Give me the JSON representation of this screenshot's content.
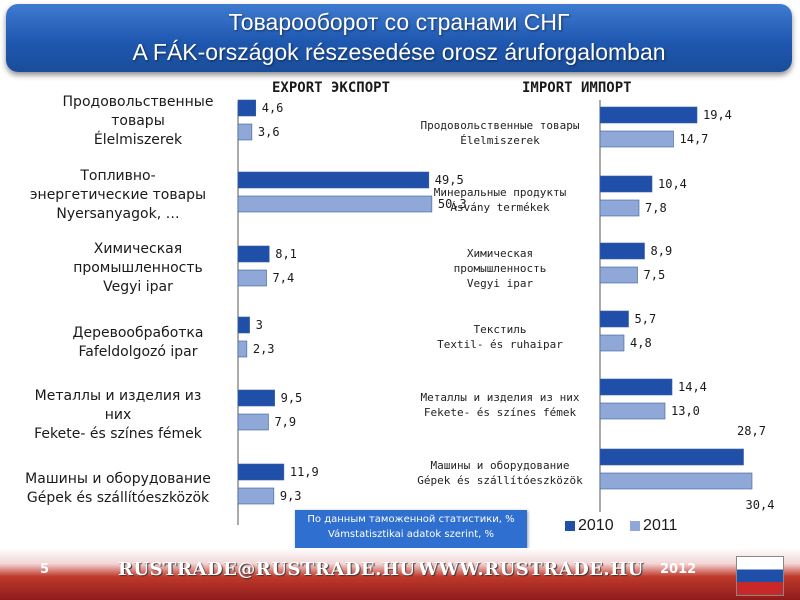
{
  "title": {
    "line1": "Товарооборот со странами СНГ",
    "line2": "A FÁK-országok részesedése orosz áruforgalomban"
  },
  "colors": {
    "y2010": "#1f4fa8",
    "y2011": "#8fa8d8",
    "axis": "#555555"
  },
  "chart_data": [
    {
      "type": "bar",
      "orientation": "horizontal",
      "title": "EXPORT ЭКСПОРТ",
      "categories": [
        "Продовольственные товары Élelmiszerek",
        "Топливно-энергетические товары Nyersanyagok, …",
        "Химическая промышленность Vegyi ipar",
        "Деревообработка Fafeldolgozó ipar",
        "Металлы и изделия из них Fekete- és színes fémek",
        "Машины и оборудование Gépek és szállítóeszközök"
      ],
      "series": [
        {
          "name": "2010",
          "values": [
            4.6,
            49.5,
            8.1,
            3,
            9.5,
            11.9
          ]
        },
        {
          "name": "2011",
          "values": [
            3.6,
            50.3,
            7.4,
            2.3,
            7.9,
            9.3
          ]
        }
      ],
      "value_labels": {
        "2010": [
          "4,6",
          "49,5",
          "8,1",
          "3",
          "9,5",
          "11,9"
        ],
        "2011": [
          "3,6",
          "50,3",
          "7,4",
          "2,3",
          "7,9",
          "9,3"
        ]
      },
      "xlim": [
        0,
        55
      ]
    },
    {
      "type": "bar",
      "orientation": "horizontal",
      "title": "IMPORT ИМПОРТ",
      "categories": [
        "Продовольственные товары Élelmiszerek",
        "Минеральные продукты Ásvány termékek",
        "Химическая промышленность Vegyi ipar",
        "Текстиль Textil- és ruhaipar",
        "Металлы и изделия из них Fekete- és színes fémek",
        "Машины и оборудование Gépek és szállítóeszközök"
      ],
      "series": [
        {
          "name": "2010",
          "values": [
            19.4,
            10.4,
            8.9,
            5.7,
            14.4,
            28.7
          ]
        },
        {
          "name": "2011",
          "values": [
            14.7,
            7.8,
            7.5,
            4.8,
            13.0,
            30.4
          ]
        }
      ],
      "value_labels": {
        "2010": [
          "19,4",
          "10,4",
          "8,9",
          "5,7",
          "14,4",
          "28,7"
        ],
        "2011": [
          "14,7",
          "7,8",
          "7,5",
          "4,8",
          "13,0",
          "30,4"
        ]
      },
      "xlim": [
        0,
        32
      ]
    }
  ],
  "left_labels": [
    [
      "Продовольственные",
      "товары",
      "Élelmiszerek"
    ],
    [
      "Топливно-",
      "энергетические товары",
      "Nyersanyagok, …"
    ],
    [
      "Химическая",
      "промышленность",
      "Vegyi ipar"
    ],
    [
      "Деревообработка",
      "Fafeldolgozó ipar"
    ],
    [
      "Металлы и изделия из",
      "них",
      "Fekete- és színes fémek"
    ],
    [
      "Машины и оборудование",
      "Gépek és szállítóeszközök"
    ]
  ],
  "right_labels": [
    [
      "Продовольственные товары",
      "Élelmiszerek"
    ],
    [
      "Минеральные продукты",
      "Ásvány termékek"
    ],
    [
      "Химическая",
      "промышленность",
      "Vegyi ipar"
    ],
    [
      "Текстиль",
      "Textil- és ruhaipar"
    ],
    [
      "Металлы и изделия из них",
      "Fekete- és színes fémek"
    ],
    [
      "Машины и оборудование",
      "Gépek és szállítóeszközök"
    ]
  ],
  "note": {
    "line1": "По данным таможенной статистики, %",
    "line2": "Vámstatisztikai adatok szerint, %"
  },
  "legend": {
    "a": "2010",
    "b": "2011"
  },
  "footer": {
    "page": "5",
    "email": "RUSTRADE@RUSTRADE.HU",
    "web": "WWW.RUSTRADE.HU",
    "year": "2012"
  }
}
